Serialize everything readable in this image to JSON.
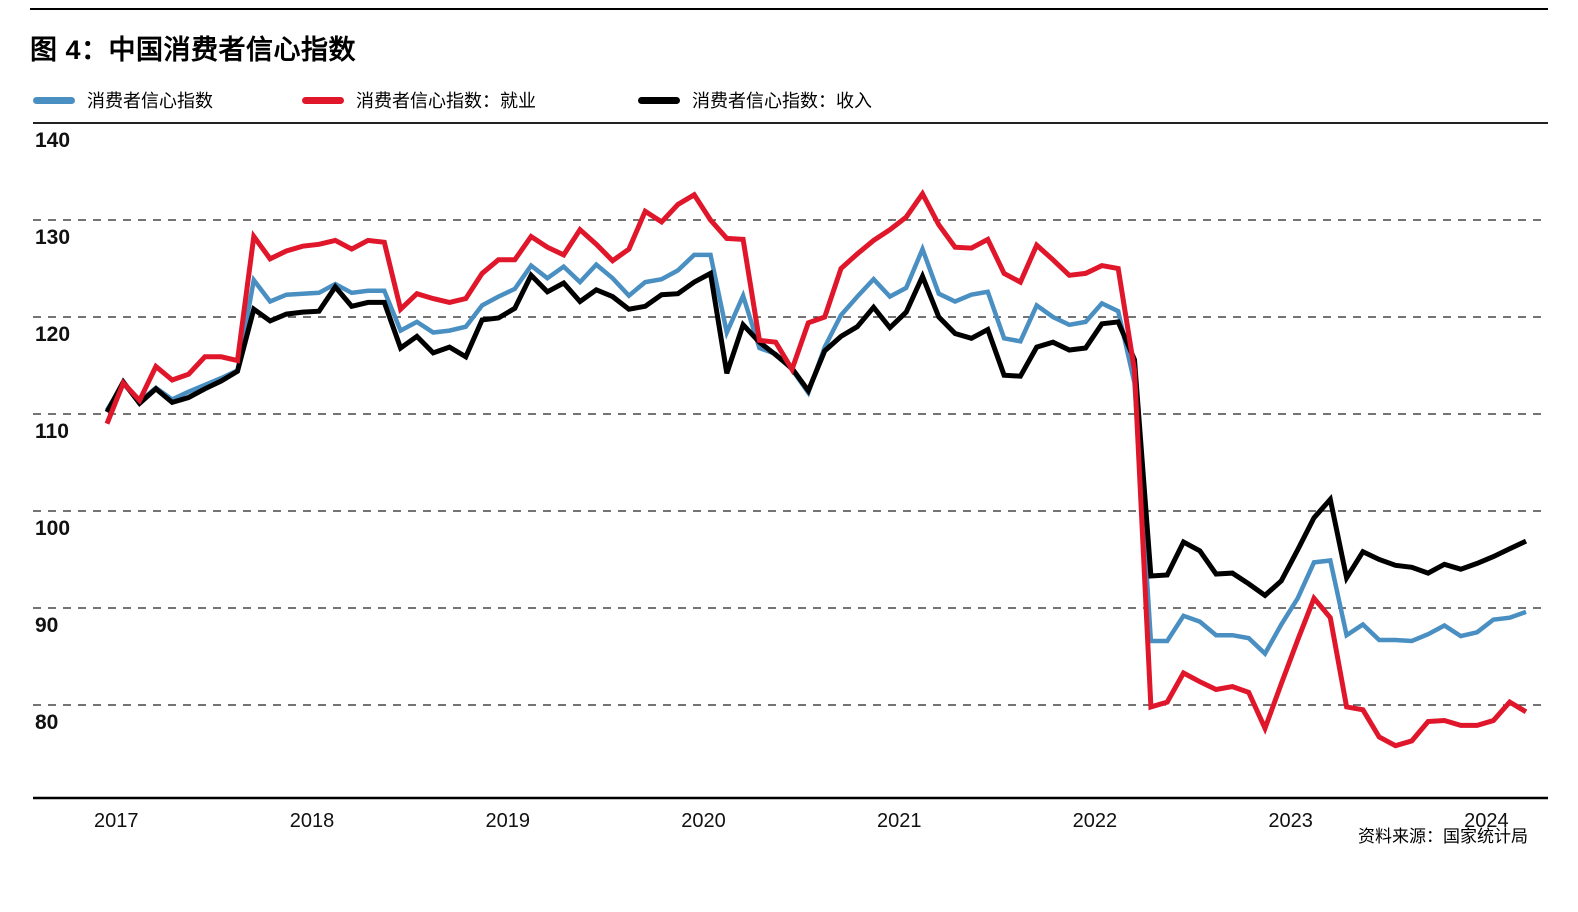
{
  "title": "图 4：中国消费者信心指数",
  "source_note": "资料来源：国家统计局",
  "legend": {
    "items": [
      {
        "label": "消费者信心指数",
        "color": "#4a8fc2"
      },
      {
        "label": "消费者信心指数：就业",
        "color": "#e0162b"
      },
      {
        "label": "消费者信心指数：收入",
        "color": "#000000"
      }
    ]
  },
  "chart_data": {
    "type": "line",
    "title": "图 4：中国消费者信心指数",
    "xlabel": "",
    "ylabel": "",
    "ylim": [
      70,
      140
    ],
    "yticks": [
      140,
      130,
      120,
      110,
      100,
      90,
      80
    ],
    "xticks": [
      "2017",
      "2018",
      "2019",
      "2020",
      "2021",
      "2022",
      "2023",
      "2024"
    ],
    "grid": "dashed-horizontal",
    "legend_position": "top-left",
    "months": [
      "2016-12",
      "2017-01",
      "2017-02",
      "2017-03",
      "2017-04",
      "2017-05",
      "2017-06",
      "2017-07",
      "2017-08",
      "2017-09",
      "2017-10",
      "2017-11",
      "2017-12",
      "2018-01",
      "2018-02",
      "2018-03",
      "2018-04",
      "2018-05",
      "2018-06",
      "2018-07",
      "2018-08",
      "2018-09",
      "2018-10",
      "2018-11",
      "2018-12",
      "2019-01",
      "2019-02",
      "2019-03",
      "2019-04",
      "2019-05",
      "2019-06",
      "2019-07",
      "2019-08",
      "2019-09",
      "2019-10",
      "2019-11",
      "2019-12",
      "2020-01",
      "2020-02",
      "2020-03",
      "2020-04",
      "2020-05",
      "2020-06",
      "2020-07",
      "2020-08",
      "2020-09",
      "2020-10",
      "2020-11",
      "2020-12",
      "2021-01",
      "2021-02",
      "2021-03",
      "2021-04",
      "2021-05",
      "2021-06",
      "2021-07",
      "2021-08",
      "2021-09",
      "2021-10",
      "2021-11",
      "2021-12",
      "2022-01",
      "2022-02",
      "2022-03",
      "2022-04",
      "2022-05",
      "2022-06",
      "2022-07",
      "2022-08",
      "2022-09",
      "2022-10",
      "2022-11",
      "2022-12",
      "2023-01",
      "2023-02",
      "2023-03",
      "2023-04",
      "2023-05",
      "2023-06",
      "2023-07",
      "2023-08",
      "2023-09",
      "2023-10",
      "2023-11",
      "2023-12",
      "2024-01",
      "2024-02",
      "2024-03"
    ],
    "series": [
      {
        "name": "消费者信心指数",
        "color": "#4a8fc2",
        "width": 4.5,
        "values": [
          110.4,
          113.1,
          111.3,
          112.7,
          111.5,
          112.3,
          113.0,
          113.7,
          114.5,
          123.8,
          121.6,
          122.3,
          122.4,
          122.5,
          123.4,
          122.5,
          122.7,
          122.7,
          118.6,
          119.5,
          118.4,
          118.6,
          119.0,
          121.2,
          122.1,
          122.9,
          125.3,
          124.0,
          125.2,
          123.6,
          125.4,
          124.0,
          122.2,
          123.6,
          123.9,
          124.8,
          126.4,
          126.4,
          118.4,
          122.2,
          116.8,
          116.2,
          114.6,
          112.2,
          116.9,
          120.2,
          122.1,
          123.9,
          122.1,
          123.0,
          127.0,
          122.4,
          121.6,
          122.3,
          122.6,
          117.8,
          117.5,
          121.2,
          120.0,
          119.2,
          119.5,
          121.4,
          120.6,
          113.2,
          86.6,
          86.6,
          89.2,
          88.6,
          87.2,
          87.2,
          86.9,
          85.3,
          88.3,
          91.0,
          94.7,
          94.9,
          87.2,
          88.3,
          86.7,
          86.7,
          86.6,
          87.3,
          88.2,
          87.1,
          87.5,
          88.8,
          89.0,
          89.6
        ]
      },
      {
        "name": "消费者信心指数：就业",
        "color": "#e0162b",
        "width": 5,
        "values": [
          109.0,
          113.2,
          111.4,
          114.9,
          113.5,
          114.1,
          115.9,
          115.9,
          115.5,
          128.3,
          126.0,
          126.8,
          127.3,
          127.5,
          127.9,
          127.0,
          127.9,
          127.7,
          120.8,
          122.4,
          121.9,
          121.5,
          121.9,
          124.5,
          125.9,
          125.9,
          128.3,
          127.2,
          126.4,
          129.0,
          127.5,
          125.8,
          127.0,
          130.9,
          129.8,
          131.6,
          132.6,
          130.0,
          128.1,
          128.0,
          117.6,
          117.4,
          114.6,
          119.4,
          120.0,
          125.0,
          126.5,
          127.9,
          129.0,
          130.3,
          132.7,
          129.5,
          127.2,
          127.1,
          128.0,
          124.5,
          123.6,
          127.4,
          125.9,
          124.3,
          124.5,
          125.3,
          125.0,
          114.5,
          79.8,
          80.3,
          83.3,
          82.4,
          81.6,
          81.9,
          81.3,
          77.6,
          82.2,
          86.7,
          91.0,
          89.0,
          79.8,
          79.5,
          76.7,
          75.8,
          76.3,
          78.3,
          78.4,
          77.9,
          77.9,
          78.4,
          80.3,
          79.3
        ]
      },
      {
        "name": "消费者信心指数：收入",
        "color": "#000000",
        "width": 5,
        "values": [
          110.2,
          113.3,
          111.1,
          112.6,
          111.2,
          111.7,
          112.6,
          113.4,
          114.4,
          120.8,
          119.6,
          120.3,
          120.5,
          120.6,
          123.1,
          121.1,
          121.5,
          121.5,
          116.8,
          118.0,
          116.3,
          116.9,
          115.9,
          119.7,
          119.9,
          120.9,
          124.3,
          122.6,
          123.5,
          121.6,
          122.8,
          122.1,
          120.8,
          121.1,
          122.3,
          122.4,
          123.6,
          124.5,
          114.2,
          119.2,
          117.4,
          116.1,
          114.7,
          112.4,
          116.5,
          118.0,
          119.0,
          121.0,
          118.9,
          120.5,
          124.2,
          120.0,
          118.3,
          117.8,
          118.7,
          114.0,
          113.9,
          116.9,
          117.4,
          116.6,
          116.8,
          119.3,
          119.5,
          115.6,
          93.3,
          93.4,
          96.8,
          95.9,
          93.5,
          93.6,
          92.5,
          91.3,
          92.8,
          96.0,
          99.3,
          101.2,
          93.1,
          95.8,
          95.0,
          94.4,
          94.2,
          93.6,
          94.5,
          94.0,
          94.6,
          95.3,
          96.1,
          96.9
        ]
      }
    ]
  }
}
